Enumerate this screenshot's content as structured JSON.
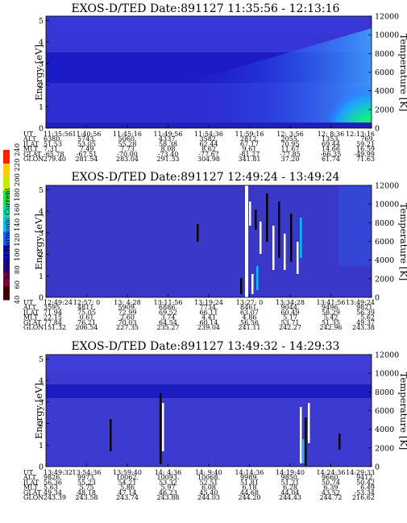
{
  "colors": {
    "background_plasma": "#3a3ad6",
    "band": "#1818c8",
    "high_energy": "#4070ff",
    "enhancement": "#14e0b0",
    "axis": "#000000"
  },
  "colorbar": {
    "label": "Second Harmonic Current",
    "ticks": [
      "40",
      "60",
      "80",
      "100",
      "120",
      "140",
      "160",
      "180",
      "200",
      "220",
      "240"
    ],
    "colors": [
      "#3c0000",
      "#7a0040",
      "#2a0090",
      "#1010c0",
      "#1060ff",
      "#00c0ff",
      "#00e0a0",
      "#20e040",
      "#c0f000",
      "#ffd000",
      "#ff2000"
    ]
  },
  "chart_data": [
    {
      "type": "heatmap",
      "title": "EXOS-D/TED  Date:891127  11:35:56 - 12:13:16",
      "ylabel": "Energy [eV]",
      "y2label": "Temperature [K]",
      "yticks": [
        "0",
        "1",
        "2",
        "3",
        "4",
        "5"
      ],
      "y2ticks": [
        "0",
        "2000",
        "4000",
        "6000",
        "8000",
        "10000",
        "12000"
      ],
      "ylim": [
        0,
        5.2
      ],
      "y2lim": [
        0,
        12000
      ],
      "orbit_row_labels": [
        "UT",
        "ALT",
        "ILAT",
        "MLT",
        "GLAT",
        "GLON"
      ],
      "orbit_table": [
        [
          "11:35:56",
          "11:40:56",
          "11:45:16",
          "11:49:56",
          "11:54:36",
          "11:59:16",
          "12: 3:56",
          "12: 8:36",
          "12:13:16"
        ],
        [
          "6380.",
          "5743.",
          "5060.",
          "4337.",
          "3582.",
          "2812.",
          "2055.",
          "1353.",
          "769."
        ],
        [
          "51.53",
          "53.05",
          "55.28",
          "58.38",
          "62.44",
          "67.17",
          "70.95",
          "69.44",
          "59.21"
        ],
        [
          "7.31",
          "7.49",
          "7.73",
          "8.08",
          "8.62",
          "9.61",
          "11.67",
          "14.66",
          "16.59"
        ],
        [
          "-65.78",
          "-67.51",
          "-70.00",
          "-73.40",
          "-77.67",
          "-81.27",
          "-77.85",
          "-66.35",
          "-49.99"
        ],
        [
          "279.40",
          "281.54",
          "283.04",
          "291.33",
          "304.98",
          "341.81",
          "37.20",
          "61.74",
          "71.63"
        ]
      ]
    },
    {
      "type": "heatmap",
      "title": "EXOS-D/TED  Date:891127  12:49:24 - 13:49:24",
      "ylabel": "Energy [eV]",
      "y2label": "Temperature [K]",
      "yticks": [
        "0",
        "1",
        "2",
        "3",
        "4",
        "5"
      ],
      "y2ticks": [
        "0",
        "2000",
        "4000",
        "6000",
        "8000",
        "10000",
        "12000"
      ],
      "ylim": [
        0,
        5.2
      ],
      "y2lim": [
        0,
        12000
      ],
      "orbit_row_labels": [
        "UT",
        "ALT",
        "ILAT",
        "MLT",
        "GLAT",
        "GLON"
      ],
      "orbit_table": [
        [
          "12:49:24",
          "12:57: 0",
          "13: 4:28",
          "13:11:56",
          "13:19:24",
          "13:27: 0",
          "13:34:28",
          "13:41:56",
          "13:49:24"
        ],
        [
          "3595.",
          "4811.",
          "5909.",
          "6886.",
          "7734.",
          "8461.",
          "9044.",
          "9496.",
          "9821."
        ],
        [
          "71.94",
          "75.05",
          "72.99",
          "69.52",
          "66.11",
          "63.07",
          "60.49",
          "58.29",
          "56.39"
        ],
        [
          "22.15",
          "0.61",
          "2.60",
          "3.74",
          "4.41",
          "4.86",
          "5.17",
          "5.42",
          "5.62"
        ],
        [
          "77.84",
          "76.21",
          "70.03",
          "64.54",
          "60.14",
          "56.56",
          "53.71",
          "51.35",
          "49.37"
        ],
        [
          "151.32",
          "206.54",
          "227.35",
          "235.27",
          "239.04",
          "241.11",
          "242.27",
          "242.96",
          "243.38"
        ]
      ]
    },
    {
      "type": "heatmap",
      "title": "EXOS-D/TED  Date:891127  13:49:32 - 14:29:33",
      "ylabel": "Energy [eV]",
      "y2label": "Temperature [K]",
      "yticks": [
        "0",
        "1",
        "2",
        "3",
        "4",
        "5"
      ],
      "y2ticks": [
        "0",
        "2000",
        "4000",
        "6000",
        "8000",
        "10000",
        "12000"
      ],
      "ylim": [
        0,
        5.2
      ],
      "y2lim": [
        0,
        12000
      ],
      "orbit_row_labels": [
        "UT",
        "ALT",
        "ILAT",
        "MLT",
        "GLAT",
        "GLON"
      ],
      "orbit_table": [
        [
          "13:49:32",
          "13:54:36",
          "13:59:40",
          "14: 4:36",
          "14: 9:40",
          "14:14:36",
          "14:19:40",
          "14:24:36",
          "14:29:33"
        ],
        [
          "9826.",
          "9973.",
          "10062.",
          "10093.",
          "10068.",
          "9989.",
          "9850.",
          "9660.",
          "9412."
        ],
        [
          "56.36",
          "55.23",
          "54.21",
          "53.32",
          "52.51",
          "51.81",
          "51.21",
          "50.74",
          "50.42"
        ],
        [
          "5.63",
          "5.75",
          "5.86",
          "5.97",
          "6.08",
          "6.18",
          "6.28",
          "6.39",
          "6.49"
        ],
        [
          "49.34",
          "48.18",
          "47.14",
          "46.23",
          "45.40",
          "44.68",
          "44.04",
          "43.52",
          "-53.34"
        ],
        [
          "243.39",
          "243.58",
          "243.74",
          "243.88",
          "244.03",
          "244.20",
          "244.43",
          "244.72",
          "216.62"
        ]
      ]
    }
  ]
}
